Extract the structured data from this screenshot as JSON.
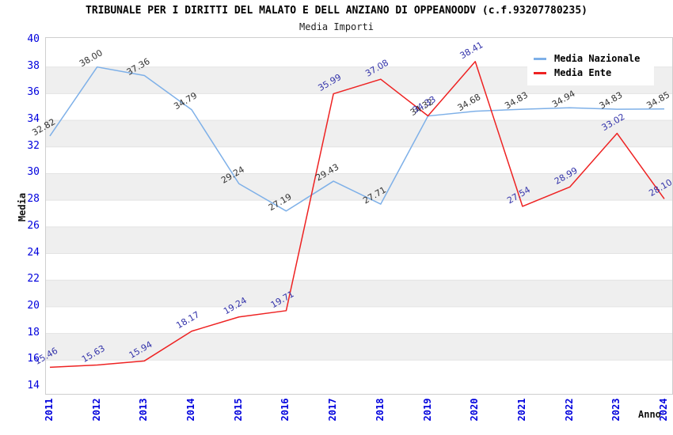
{
  "title": "TRIBUNALE PER I DIRITTI DEL MALATO E DELL ANZIANO DI OPPEANOODV (c.f.93207780235)",
  "subtitle": "Media Importi",
  "chart_data": {
    "type": "line",
    "x": [
      2011,
      2012,
      2013,
      2014,
      2015,
      2016,
      2017,
      2018,
      2019,
      2020,
      2021,
      2022,
      2023,
      2024
    ],
    "series": [
      {
        "name": "Media Nazionale",
        "color": "#7EB0E8",
        "label_color": "#333333",
        "values": [
          "32.82",
          "38.00",
          "37.36",
          "34.79",
          "29.24",
          "27.19",
          "29.43",
          "27.71",
          "34.32",
          "34.68",
          "34.83",
          "34.94",
          "34.83",
          "34.85"
        ]
      },
      {
        "name": "Media Ente",
        "color": "#EE2222",
        "label_color": "#3333AA",
        "values": [
          "15.46",
          "15.63",
          "15.94",
          "18.17",
          "19.24",
          "19.71",
          "35.99",
          "37.08",
          "34.33",
          "38.41",
          "27.54",
          "28.99",
          "33.02",
          "28.10"
        ]
      }
    ],
    "xlabel": "Anno",
    "ylabel": "Media",
    "ylim": [
      14,
      40
    ],
    "yticks": [
      14,
      16,
      18,
      20,
      22,
      24,
      26,
      28,
      30,
      32,
      34,
      36,
      38,
      40
    ],
    "grid": "horizontal-bands",
    "band_color": "#EFEFEF",
    "gridline_color": "#E3E3E3",
    "axis_tick_color": "#0000DD",
    "legend_position": "top-right"
  }
}
